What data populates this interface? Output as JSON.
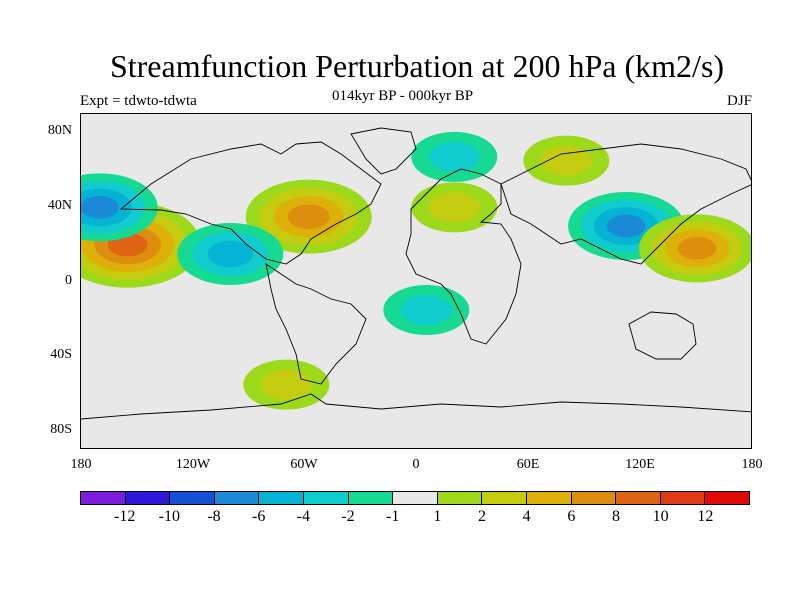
{
  "title": "Streamfunction Perturbation at 200 hPa (km2/s)",
  "subtitle": "014kyr BP - 000kyr BP",
  "left_label": "Expt = tdwto-tdwta",
  "right_label": "DJF",
  "lat_ticks": [
    "80N",
    "40N",
    "0",
    "40S",
    "80S"
  ],
  "lon_ticks": [
    "180",
    "120W",
    "60W",
    "0",
    "60E",
    "120E",
    "180"
  ],
  "colorbar": {
    "colors": [
      "#7c1ddb",
      "#2f19d9",
      "#1550d6",
      "#1a8ad6",
      "#05b3d4",
      "#10cccc",
      "#16d992",
      "#e8e8e8",
      "#9bd91a",
      "#c4cc0f",
      "#ddb10a",
      "#dd8e0e",
      "#dd6412",
      "#df3a10",
      "#e30808"
    ],
    "labels": [
      "-12",
      "-10",
      "-8",
      "-6",
      "-4",
      "-2",
      "-1",
      "1",
      "2",
      "4",
      "6",
      "8",
      "10",
      "12"
    ]
  },
  "chart_data": {
    "type": "filled-contour-map",
    "title": "Streamfunction Perturbation at 200 hPa (km2/s)",
    "subtitle": "014kyr BP - 000kyr BP",
    "experiment": "Expt = tdwto-tdwta",
    "season": "DJF",
    "projection": "cylindrical equidistant",
    "lon_range": [
      -180,
      180
    ],
    "lat_range": [
      -90,
      90
    ],
    "contour_levels": [
      -12,
      -10,
      -8,
      -6,
      -4,
      -2,
      -1,
      1,
      2,
      4,
      6,
      8,
      10,
      12
    ],
    "anomalies": [
      {
        "name": "North Pacific positive",
        "lon": -155,
        "lat": 20,
        "peak": 9
      },
      {
        "name": "North Pacific negative",
        "lon": -170,
        "lat": 40,
        "peak": -6
      },
      {
        "name": "Western Atlantic positive",
        "lon": -58,
        "lat": 35,
        "peak": 7
      },
      {
        "name": "Eastern Pacific negative",
        "lon": -100,
        "lat": 15,
        "peak": -5
      },
      {
        "name": "Northern Europe negative",
        "lon": 20,
        "lat": 67,
        "peak": -3
      },
      {
        "name": "Mediterranean positive",
        "lon": 20,
        "lat": 40,
        "peak": 3
      },
      {
        "name": "Siberia positive",
        "lon": 80,
        "lat": 65,
        "peak": 3
      },
      {
        "name": "East Asia negative",
        "lon": 112,
        "lat": 30,
        "peak": -6
      },
      {
        "name": "Western Pacific positive",
        "lon": 150,
        "lat": 18,
        "peak": 6
      },
      {
        "name": "South Atlantic negative",
        "lon": 5,
        "lat": -15,
        "peak": -3
      },
      {
        "name": "Southern Ocean positive",
        "lon": -70,
        "lat": -55,
        "peak": 3
      }
    ]
  }
}
